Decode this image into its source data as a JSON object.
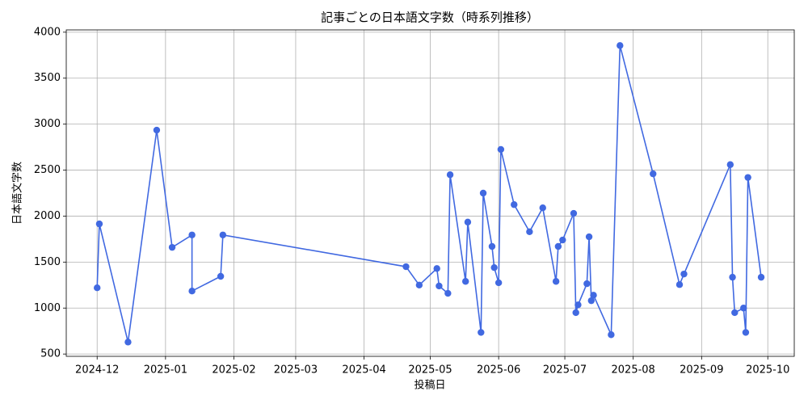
{
  "chart_data": {
    "type": "line",
    "title": "記事ごとの日本語文字数（時系列推移）",
    "x_label": "投稿日",
    "y_label": "日本語文字数",
    "x": [
      "2024-12-01",
      "2024-12-02",
      "2024-12-15",
      "2024-12-28",
      "2025-01-04",
      "2025-01-13",
      "2025-01-13",
      "2025-01-26",
      "2025-01-27",
      "2025-04-20",
      "2025-04-26",
      "2025-05-04",
      "2025-05-05",
      "2025-05-09",
      "2025-05-10",
      "2025-05-17",
      "2025-05-18",
      "2025-05-24",
      "2025-05-25",
      "2025-05-29",
      "2025-05-30",
      "2025-06-01",
      "2025-06-02",
      "2025-06-08",
      "2025-06-15",
      "2025-06-21",
      "2025-06-27",
      "2025-06-28",
      "2025-06-30",
      "2025-07-05",
      "2025-07-06",
      "2025-07-07",
      "2025-07-11",
      "2025-07-12",
      "2025-07-13",
      "2025-07-14",
      "2025-07-22",
      "2025-07-26",
      "2025-08-10",
      "2025-08-22",
      "2025-08-24",
      "2025-09-14",
      "2025-09-15",
      "2025-09-16",
      "2025-09-20",
      "2025-09-21",
      "2025-09-22",
      "2025-09-28"
    ],
    "series": [
      {
        "color": "#4169e1",
        "values": [
          1220,
          1915,
          630,
          2935,
          1660,
          1795,
          1185,
          1345,
          1795,
          1450,
          1250,
          1430,
          1240,
          1160,
          2450,
          1290,
          1935,
          735,
          2250,
          1670,
          1440,
          1275,
          2725,
          2125,
          1830,
          2090,
          1290,
          1670,
          1740,
          2030,
          950,
          1035,
          1265,
          1775,
          1080,
          1140,
          710,
          3855,
          2460,
          1255,
          1370,
          2560,
          1335,
          950,
          1000,
          735,
          2420,
          1335
        ]
      }
    ],
    "xlim": [
      "2024-11-17",
      "2025-10-13"
    ],
    "xticks": [
      "2024-12",
      "2025-01",
      "2025-02",
      "2025-03",
      "2025-04",
      "2025-05",
      "2025-06",
      "2025-07",
      "2025-08",
      "2025-09",
      "2025-10"
    ],
    "ylim": [
      475,
      4025
    ],
    "yticks": [
      500,
      1000,
      1500,
      2000,
      2500,
      3000,
      3500,
      4000
    ],
    "grid": true
  }
}
